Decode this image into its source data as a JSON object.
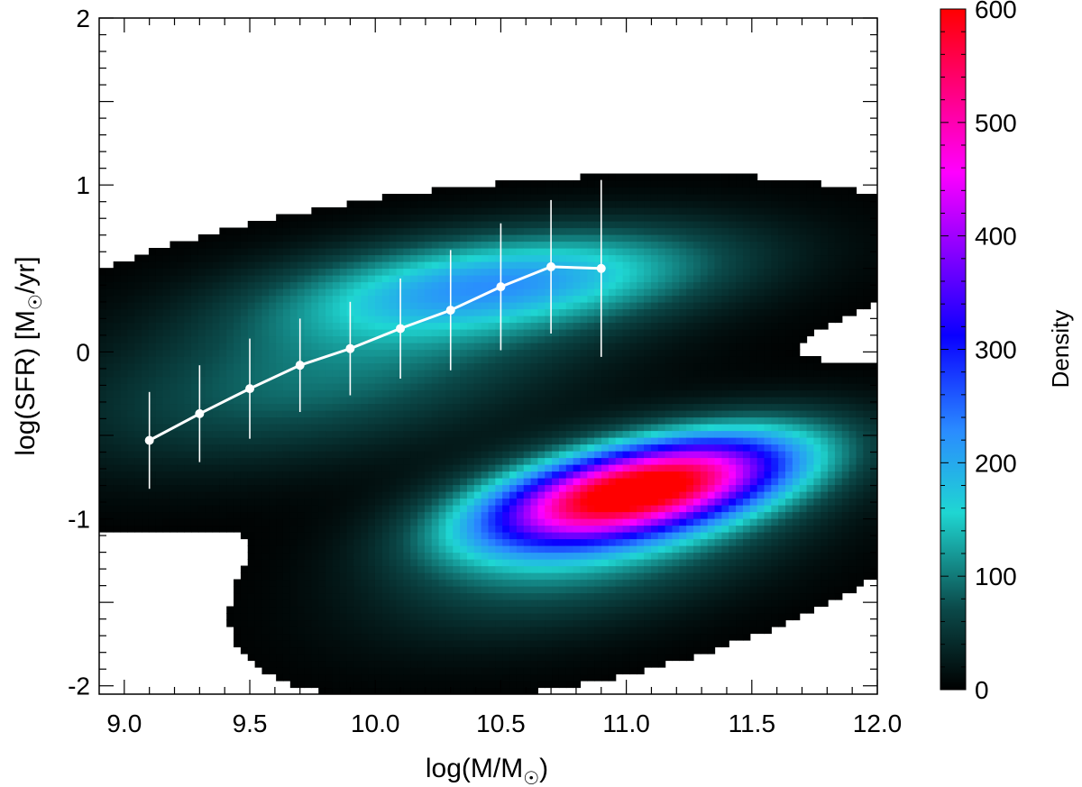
{
  "chart_data": {
    "type": "heatmap",
    "overlay_type": "line",
    "x_label_base": "log(M/M",
    "x_label_end": ")",
    "y_label_base": "log(SFR) [M",
    "y_label_end": "/yr]",
    "xlim": [
      8.9,
      12.0
    ],
    "ylim": [
      -2.05,
      2.0
    ],
    "x_ticks": [
      {
        "value": 9.0,
        "label": "9.0"
      },
      {
        "value": 9.5,
        "label": "9.5"
      },
      {
        "value": 10.0,
        "label": "10.0"
      },
      {
        "value": 10.5,
        "label": "10.5"
      },
      {
        "value": 11.0,
        "label": "11.0"
      },
      {
        "value": 11.5,
        "label": "11.5"
      },
      {
        "value": 12.0,
        "label": "12.0"
      }
    ],
    "y_ticks": [
      {
        "value": 2,
        "label": "2"
      },
      {
        "value": 1,
        "label": "1"
      },
      {
        "value": 0,
        "label": "0"
      },
      {
        "value": -1,
        "label": "-1"
      },
      {
        "value": -2,
        "label": "-2"
      }
    ],
    "colorbar": {
      "label": "Density",
      "range": [
        0,
        600
      ],
      "ticks": [
        {
          "value": 600,
          "label": "600"
        },
        {
          "value": 500,
          "label": "500"
        },
        {
          "value": 400,
          "label": "400"
        },
        {
          "value": 300,
          "label": "300"
        },
        {
          "value": 200,
          "label": "200"
        },
        {
          "value": 100,
          "label": "100"
        },
        {
          "value": 0,
          "label": "0"
        }
      ],
      "colors": [
        "#000000",
        "#0b4a4a",
        "#1fd6d2",
        "#2a8cff",
        "#0a00ff",
        "#ff00ff",
        "#ff0000"
      ]
    },
    "density_components": [
      {
        "cx": 11.05,
        "cy": -0.82,
        "sx": 0.42,
        "sy": 0.22,
        "rho": 0.55,
        "peak": 600
      },
      {
        "cx": 10.5,
        "cy": 0.42,
        "sx": 0.6,
        "sy": 0.22,
        "rho": 0.4,
        "peak": 200
      },
      {
        "cx": 9.8,
        "cy": -0.15,
        "sx": 0.7,
        "sy": 0.35,
        "rho": 0.45,
        "peak": 95
      },
      {
        "cx": 10.9,
        "cy": -1.15,
        "sx": 0.55,
        "sy": 0.35,
        "rho": 0.5,
        "peak": 110
      }
    ],
    "series": [
      {
        "x": [
          9.1,
          9.3,
          9.5,
          9.7,
          9.9,
          10.1,
          10.3,
          10.5,
          10.7,
          10.9
        ],
        "y": [
          -0.53,
          -0.37,
          -0.22,
          -0.08,
          0.02,
          0.14,
          0.25,
          0.39,
          0.51,
          0.5
        ],
        "yerr": [
          0.29,
          0.29,
          0.3,
          0.28,
          0.28,
          0.3,
          0.36,
          0.38,
          0.4,
          0.53
        ],
        "color": "#ffffff"
      }
    ]
  }
}
